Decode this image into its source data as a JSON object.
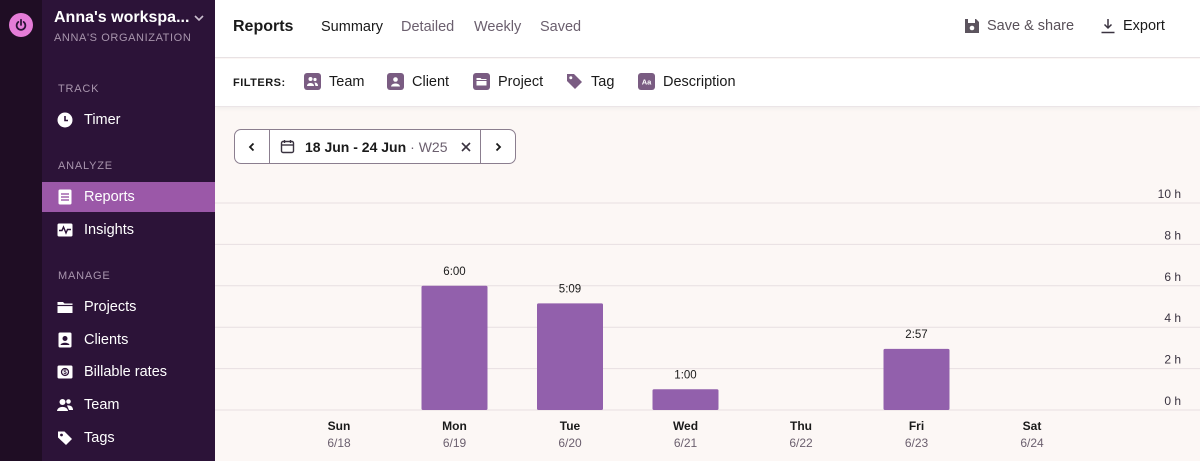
{
  "workspace": {
    "name": "Anna's workspa...",
    "organization": "ANNA'S ORGANIZATION"
  },
  "sidebar": {
    "sections": [
      {
        "label": "TRACK",
        "items": [
          {
            "label": "Timer",
            "icon": "clock-icon",
            "active": false
          }
        ]
      },
      {
        "label": "ANALYZE",
        "items": [
          {
            "label": "Reports",
            "icon": "document-icon",
            "active": true
          },
          {
            "label": "Insights",
            "icon": "pulse-icon",
            "active": false
          }
        ]
      },
      {
        "label": "MANAGE",
        "items": [
          {
            "label": "Projects",
            "icon": "folder-icon",
            "active": false
          },
          {
            "label": "Clients",
            "icon": "contact-card-icon",
            "active": false
          },
          {
            "label": "Billable rates",
            "icon": "money-icon",
            "active": false
          },
          {
            "label": "Team",
            "icon": "people-icon",
            "active": false
          },
          {
            "label": "Tags",
            "icon": "tag-icon",
            "active": false
          }
        ]
      }
    ]
  },
  "header": {
    "title": "Reports",
    "tabs": [
      {
        "label": "Summary",
        "active": true
      },
      {
        "label": "Detailed",
        "active": false
      },
      {
        "label": "Weekly",
        "active": false
      },
      {
        "label": "Saved",
        "active": false
      }
    ],
    "save_share": "Save & share",
    "export": "Export"
  },
  "filters": {
    "label": "FILTERS:",
    "items": [
      {
        "label": "Team",
        "icon": "team-icon"
      },
      {
        "label": "Client",
        "icon": "client-icon"
      },
      {
        "label": "Project",
        "icon": "project-icon"
      },
      {
        "label": "Tag",
        "icon": "tag-icon"
      },
      {
        "label": "Description",
        "icon": "description-icon"
      }
    ]
  },
  "date_picker": {
    "range": "18 Jun - 24 Jun",
    "week": "· W25"
  },
  "colors": {
    "accent": "#9b58a8",
    "bar": "#9260ac",
    "sidebar": "#2c1338",
    "rail": "#1f0d24"
  },
  "chart_data": {
    "type": "bar",
    "categories": [
      "Sun",
      "Mon",
      "Tue",
      "Wed",
      "Thu",
      "Fri",
      "Sat"
    ],
    "category_dates": [
      "6/18",
      "6/19",
      "6/20",
      "6/21",
      "6/22",
      "6/23",
      "6/24"
    ],
    "values": [
      0,
      6.0,
      5.15,
      1.0,
      0,
      2.95,
      0
    ],
    "data_labels": [
      "",
      "6:00",
      "5:09",
      "1:00",
      "",
      "2:57",
      ""
    ],
    "y_ticks": [
      "0 h",
      "2 h",
      "4 h",
      "6 h",
      "8 h",
      "10 h"
    ],
    "ylim": [
      0,
      10
    ],
    "grid": true
  }
}
